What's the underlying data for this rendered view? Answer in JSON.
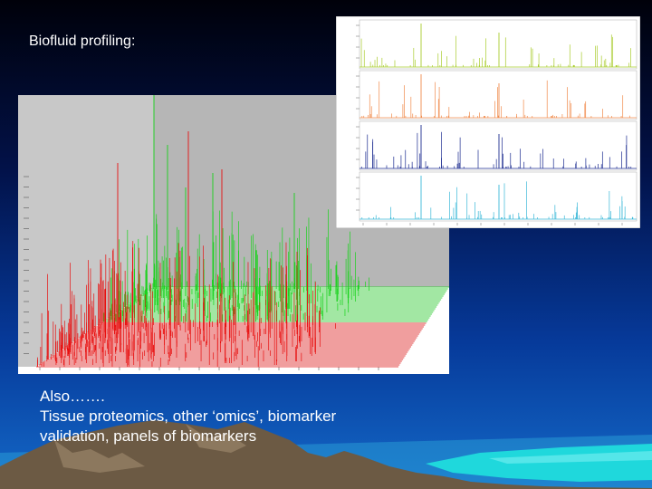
{
  "slide": {
    "title": "Biofluid profiling:",
    "body_lines": [
      "Also…….",
      "Tissue proteomics, other ‘omics’, biomarker",
      "validation, panels of biomarkers"
    ]
  },
  "colors": {
    "green_series": "#19d21c",
    "red_series": "#e81010",
    "panel_a": "#a8cc2c",
    "panel_b": "#f08a4a",
    "panel_c": "#1c2c90",
    "panel_d": "#3ab8d8",
    "wall": "#b6b6b6",
    "floor": "#f4f4f4"
  }
}
